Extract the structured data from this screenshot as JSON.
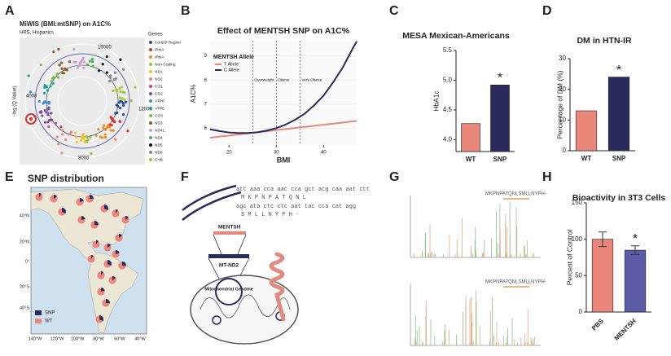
{
  "panel_labels": [
    "A",
    "B",
    "C",
    "D",
    "E",
    "F",
    "G",
    "H"
  ],
  "panel_a": {
    "title": "MiWIS (BMI:mtSNP) on A1C%",
    "subtitle": "HRS, Hispanics",
    "axis_label": "-log (Q Value)",
    "ring_labels": [
      "16000",
      "12000",
      "8000",
      "4000"
    ],
    "legend_title": "Genes",
    "genes": [
      {
        "name": "Control Region",
        "color": "#2b4c9b"
      },
      {
        "name": "tRNA",
        "color": "#e2312b"
      },
      {
        "name": "rRNA",
        "color": "#f08a24"
      },
      {
        "name": "Non-Coding",
        "color": "#9cc03a"
      },
      {
        "name": "ND1",
        "color": "#f2c230"
      },
      {
        "name": "ND2",
        "color": "#e8877a"
      },
      {
        "name": "CO1",
        "color": "#d83b8c"
      },
      {
        "name": "CO2",
        "color": "#7c4ea0"
      },
      {
        "name": "ATP8",
        "color": "#3a8fd1"
      },
      {
        "name": "ATP6",
        "color": "#1aa39a"
      },
      {
        "name": "CO3",
        "color": "#6fbf4a"
      },
      {
        "name": "ND3",
        "color": "#8a5a2b"
      },
      {
        "name": "ND4L",
        "color": "#c9a0dc"
      },
      {
        "name": "ND4",
        "color": "#4caf50"
      },
      {
        "name": "ND5",
        "color": "#111111"
      },
      {
        "name": "ND6",
        "color": "#888888"
      },
      {
        "name": "CYB",
        "color": "#a3c93a"
      }
    ]
  },
  "chart_data": [
    {
      "type": "line",
      "title": "Effect of MENTSH SNP on A1C%",
      "xlabel": "BMI",
      "ylabel": "A1C%",
      "legend_title": "MENTSH Allele",
      "x": [
        16,
        18,
        20,
        22,
        24,
        26,
        28,
        30,
        32,
        34,
        36,
        38,
        40,
        42,
        44,
        46,
        47
      ],
      "series": [
        {
          "name": "T Allele",
          "color": "#e8877a",
          "values": [
            5.6,
            5.65,
            5.69,
            5.74,
            5.78,
            5.83,
            5.87,
            5.92,
            5.96,
            6.01,
            6.05,
            6.1,
            6.14,
            6.19,
            6.23,
            6.28,
            6.3
          ]
        },
        {
          "name": "C Allele",
          "color": "#2b2a5c",
          "values": [
            5.95,
            5.88,
            5.82,
            5.8,
            5.8,
            5.83,
            5.9,
            6.0,
            6.15,
            6.35,
            6.6,
            6.95,
            7.35,
            7.9,
            8.5,
            9.25,
            9.6
          ]
        }
      ],
      "regions": [
        {
          "label": "Overweight",
          "x": 25
        },
        {
          "label": "Obese",
          "x": 30
        },
        {
          "label": "Very Obese",
          "x": 35
        }
      ],
      "xlim": [
        16,
        47
      ],
      "ylim": [
        5.3,
        9.8
      ],
      "xticks": [
        20,
        30,
        40
      ],
      "yticks": [
        6,
        7,
        8,
        9
      ]
    },
    {
      "type": "bar",
      "title": "MESA Mexican-Americans",
      "ylabel": "HbA1c",
      "categories": [
        "WT",
        "SNP"
      ],
      "values": [
        4.27,
        4.92
      ],
      "colors": [
        "#e8877a",
        "#2b2a5c"
      ],
      "annotation": "*",
      "ylim": [
        3.8,
        5.5
      ],
      "yticks": [
        {
          "value": 4,
          "label": "4.0"
        },
        4.5,
        {
          "value": 5,
          "label": "5.0"
        },
        5.5
      ]
    },
    {
      "type": "bar",
      "title": "DM in HTN-IR",
      "ylabel": "Percentage of DM (%)",
      "categories": [
        "WT",
        "SNP"
      ],
      "values": [
        13,
        24
      ],
      "colors": [
        "#e8877a",
        "#2b2a5c"
      ],
      "annotation": "*",
      "ylim": [
        0,
        30
      ],
      "yticks": [
        0,
        10,
        20,
        30
      ]
    },
    {
      "type": "bar",
      "title": "Bioactivity in 3T3 Cells",
      "ylabel": "Percent of Control",
      "categories": [
        "PBS",
        "MENTSH"
      ],
      "values": [
        100,
        85
      ],
      "errors": [
        10,
        6
      ],
      "colors": [
        "#e8877a",
        "#5b5ba8"
      ],
      "annotation": "*",
      "ylim": [
        0,
        150
      ],
      "yticks": [
        0,
        50,
        100,
        150
      ]
    }
  ],
  "panel_e": {
    "title": "SNP distribution",
    "lat_labels": [
      "40°N",
      "20°N",
      "0°",
      "20°S",
      "40°S"
    ],
    "lon_labels": [
      "140°W",
      "120°W",
      "100°W",
      "80°W",
      "60°W",
      "40°W"
    ],
    "legend": [
      "SNP",
      "WT"
    ]
  },
  "panel_f": {
    "sequence": [
      "att aaa cca aac cca gct acg caa aat ctt",
      "M  K  P  N  P  A  T  Q  N  L",
      "agc ata ctc ctc aat tac cca cat agg",
      "S  M  L  L  N  Y  P  H  -"
    ],
    "labels": [
      "MENTSH",
      "MT-ND2",
      "Mitochondrial Genome"
    ]
  },
  "panel_g": {
    "peptide": [
      "MKPNPATQNLSMLLNYPH-",
      "MKPNPATQNLSMLLNYPH-"
    ]
  }
}
